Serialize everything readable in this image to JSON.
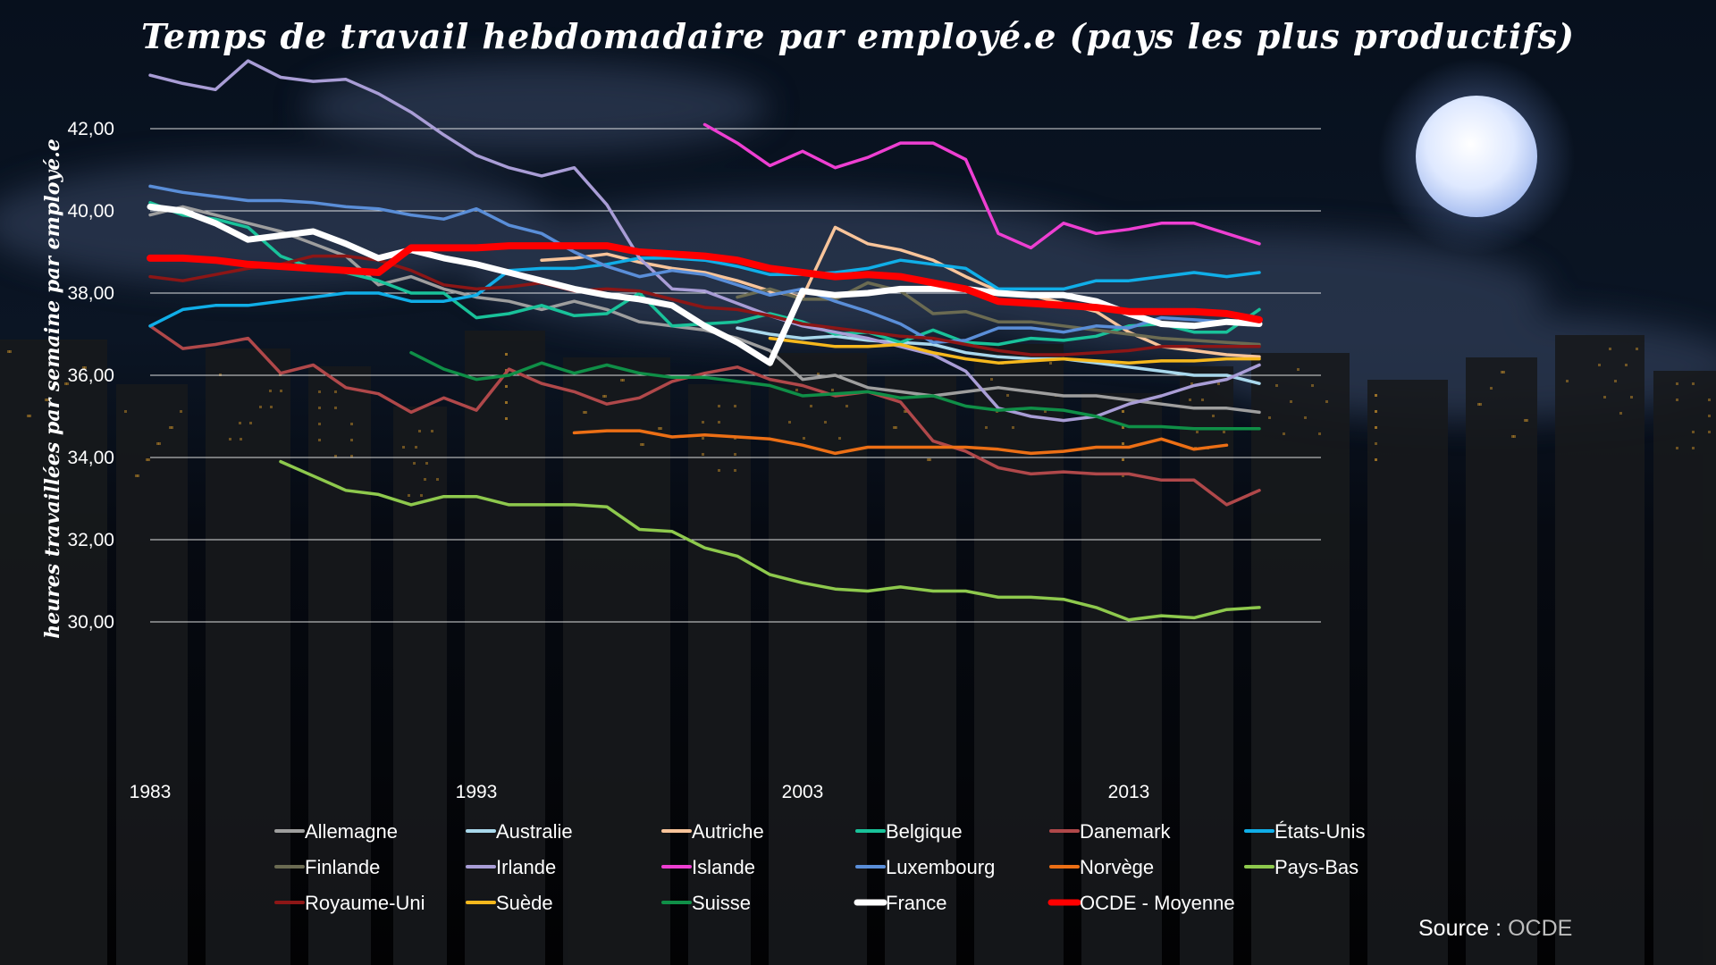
{
  "title": "Temps de travail hebdomadaire par employé.e (pays les plus productifs)",
  "source": {
    "label": "Source :",
    "value": "OCDE"
  },
  "colors": {
    "background": "#000000",
    "grid": "#ffffff",
    "moon": "#dfe9ff"
  },
  "chart_data": {
    "type": "line",
    "title": "Temps de travail hebdomadaire par employé.e (pays les plus productifs)",
    "xlabel": "",
    "ylabel": "heures travaillées par semaine par employé.e",
    "xlim": [
      1983,
      2017
    ],
    "ylim": [
      30,
      44
    ],
    "x_ticks": [
      1983,
      1993,
      2003,
      2013
    ],
    "y_ticks": [
      "30,00",
      "32,00",
      "34,00",
      "36,00",
      "38,00",
      "40,00",
      "42,00"
    ],
    "y_tick_values": [
      30,
      32,
      34,
      36,
      38,
      40,
      42
    ],
    "grid": "horizontal",
    "legend_position": "bottom",
    "series": [
      {
        "name": "Allemagne",
        "color": "#9e9e9e",
        "start": 1983,
        "values": [
          39.9,
          40.1,
          39.9,
          39.7,
          39.5,
          39.2,
          38.9,
          38.2,
          38.4,
          38.1,
          37.9,
          37.8,
          37.6,
          37.8,
          37.6,
          37.3,
          37.2,
          37.1,
          36.9,
          36.6,
          35.9,
          36.0,
          35.7,
          35.6,
          35.5,
          35.6,
          35.7,
          35.6,
          35.5,
          35.5,
          35.4,
          35.3,
          35.2,
          35.2,
          35.1
        ]
      },
      {
        "name": "Australie",
        "color": "#a9d8ec",
        "start": 2001,
        "values": [
          37.15,
          37.0,
          36.9,
          36.95,
          36.85,
          36.8,
          36.75,
          36.55,
          36.45,
          36.4,
          36.4,
          36.3,
          36.2,
          36.1,
          36.0,
          36.0,
          35.8
        ]
      },
      {
        "name": "Autriche",
        "color": "#f8c49a",
        "start": 1995,
        "values": [
          38.8,
          38.85,
          38.95,
          38.75,
          38.6,
          38.5,
          38.3,
          38.05,
          37.9,
          39.6,
          39.2,
          39.05,
          38.8,
          38.4,
          38.05,
          37.95,
          37.75,
          37.55,
          37.05,
          36.7,
          36.6,
          36.5,
          36.45
        ]
      },
      {
        "name": "Belgique",
        "color": "#19c29a",
        "start": 1983,
        "values": [
          40.2,
          39.9,
          39.8,
          39.6,
          38.9,
          38.6,
          38.5,
          38.3,
          38.0,
          38.0,
          37.4,
          37.5,
          37.7,
          37.45,
          37.5,
          38.0,
          37.2,
          37.25,
          37.3,
          37.5,
          37.3,
          37.0,
          37.05,
          36.8,
          37.1,
          36.8,
          36.75,
          36.9,
          36.85,
          36.95,
          37.2,
          37.25,
          37.05,
          37.05,
          37.6
        ]
      },
      {
        "name": "Danemark",
        "color": "#b0484a",
        "start": 1983,
        "values": [
          37.2,
          36.65,
          36.75,
          36.9,
          36.05,
          36.25,
          35.7,
          35.55,
          35.1,
          35.45,
          35.15,
          36.15,
          35.8,
          35.6,
          35.3,
          35.45,
          35.85,
          36.05,
          36.2,
          35.9,
          35.75,
          35.5,
          35.6,
          35.35,
          34.4,
          34.15,
          33.75,
          33.6,
          33.65,
          33.6,
          33.6,
          33.45,
          33.45,
          32.85,
          33.2
        ]
      },
      {
        "name": "États-Unis",
        "color": "#10aee8",
        "start": 1983,
        "values": [
          37.2,
          37.6,
          37.7,
          37.7,
          37.8,
          37.9,
          38.0,
          38.0,
          37.8,
          37.8,
          37.95,
          38.55,
          38.6,
          38.6,
          38.7,
          38.85,
          38.85,
          38.8,
          38.65,
          38.45,
          38.45,
          38.5,
          38.6,
          38.8,
          38.7,
          38.6,
          38.1,
          38.1,
          38.1,
          38.3,
          38.3,
          38.4,
          38.5,
          38.4,
          38.5
        ]
      },
      {
        "name": "Finlande",
        "color": "#6b6b52",
        "start": 2001,
        "values": [
          37.9,
          38.1,
          37.85,
          37.85,
          38.25,
          38.05,
          37.5,
          37.55,
          37.3,
          37.3,
          37.2,
          37.1,
          37.0,
          36.9,
          36.85,
          36.8,
          36.75
        ]
      },
      {
        "name": "Irlande",
        "color": "#a99dd6",
        "start": 1983,
        "values": [
          43.3,
          43.1,
          42.95,
          43.65,
          43.25,
          43.15,
          43.2,
          42.85,
          42.4,
          41.85,
          41.35,
          41.05,
          40.85,
          41.05,
          40.15,
          38.85,
          38.1,
          38.05,
          37.75,
          37.45,
          37.2,
          37.05,
          36.9,
          36.7,
          36.5,
          36.1,
          35.2,
          35.0,
          34.9,
          35.0,
          35.3,
          35.5,
          35.75,
          35.9,
          36.25
        ]
      },
      {
        "name": "Islande",
        "color": "#ee3fd2",
        "start": 2000,
        "values": [
          42.1,
          41.65,
          41.1,
          41.45,
          41.05,
          41.3,
          41.65,
          41.65,
          41.25,
          39.45,
          39.1,
          39.7,
          39.45,
          39.55,
          39.7,
          39.7,
          39.45,
          39.2
        ]
      },
      {
        "name": "Luxembourg",
        "color": "#5a8ed8",
        "start": 1983,
        "values": [
          40.6,
          40.45,
          40.35,
          40.25,
          40.25,
          40.2,
          40.1,
          40.05,
          39.9,
          39.8,
          40.05,
          39.65,
          39.45,
          39.0,
          38.65,
          38.4,
          38.55,
          38.45,
          38.2,
          37.95,
          38.1,
          37.8,
          37.55,
          37.25,
          36.8,
          36.85,
          37.15,
          37.15,
          37.05,
          37.2,
          37.15,
          37.4,
          37.35,
          37.3,
          37.35
        ]
      },
      {
        "name": "Norvège",
        "color": "#ec6f15",
        "start": 1996,
        "values": [
          34.6,
          34.65,
          34.65,
          34.5,
          34.55,
          34.5,
          34.45,
          34.3,
          34.1,
          34.25,
          34.25,
          34.25,
          34.25,
          34.2,
          34.1,
          34.15,
          34.25,
          34.25,
          34.45,
          34.2,
          34.3
        ]
      },
      {
        "name": "Pays-Bas",
        "color": "#8ec94d",
        "start": 1987,
        "values": [
          33.9,
          33.55,
          33.2,
          33.1,
          32.85,
          33.05,
          33.05,
          32.85,
          32.85,
          32.85,
          32.8,
          32.25,
          32.2,
          31.8,
          31.6,
          31.15,
          30.95,
          30.8,
          30.75,
          30.85,
          30.75,
          30.75,
          30.6,
          30.6,
          30.55,
          30.35,
          30.05,
          30.15,
          30.1,
          30.3,
          30.35
        ]
      },
      {
        "name": "Royaume-Uni",
        "color": "#8c1616",
        "start": 1983,
        "values": [
          38.4,
          38.3,
          38.45,
          38.6,
          38.7,
          38.9,
          38.9,
          38.8,
          38.55,
          38.2,
          38.1,
          38.15,
          38.25,
          38.05,
          38.1,
          38.05,
          37.85,
          37.65,
          37.6,
          37.45,
          37.25,
          37.15,
          37.05,
          36.95,
          36.9,
          36.75,
          36.6,
          36.5,
          36.5,
          36.55,
          36.6,
          36.7,
          36.7,
          36.7,
          36.7
        ]
      },
      {
        "name": "Suède",
        "color": "#f6b81d",
        "start": 2002,
        "values": [
          36.9,
          36.8,
          36.7,
          36.7,
          36.75,
          36.55,
          36.4,
          36.3,
          36.35,
          36.4,
          36.35,
          36.3,
          36.35,
          36.35,
          36.4,
          36.4
        ]
      },
      {
        "name": "Suisse",
        "color": "#0f8f47",
        "start": 1991,
        "values": [
          36.55,
          36.15,
          35.9,
          36.0,
          36.3,
          36.05,
          36.25,
          36.05,
          35.95,
          35.95,
          35.85,
          35.75,
          35.5,
          35.55,
          35.6,
          35.45,
          35.5,
          35.25,
          35.15,
          35.2,
          35.15,
          35.0,
          34.75,
          34.75,
          34.7,
          34.7,
          34.7
        ]
      },
      {
        "name": "France",
        "color": "#ffffff",
        "start": 1983,
        "values": [
          40.1,
          40.0,
          39.7,
          39.3,
          39.4,
          39.5,
          39.2,
          38.85,
          39.05,
          38.85,
          38.7,
          38.5,
          38.3,
          38.1,
          37.95,
          37.85,
          37.7,
          37.2,
          36.8,
          36.3,
          38.05,
          37.95,
          38.0,
          38.1,
          38.1,
          38.1,
          38.0,
          37.95,
          37.95,
          37.8,
          37.5,
          37.25,
          37.2,
          37.3,
          37.25
        ]
      },
      {
        "name": "OCDE - Moyenne",
        "color": "#ff0000",
        "start": 1983,
        "values": [
          38.85,
          38.85,
          38.8,
          38.7,
          38.65,
          38.6,
          38.55,
          38.5,
          39.1,
          39.1,
          39.1,
          39.15,
          39.15,
          39.15,
          39.15,
          39.0,
          38.95,
          38.9,
          38.8,
          38.6,
          38.5,
          38.4,
          38.45,
          38.4,
          38.25,
          38.1,
          37.8,
          37.75,
          37.7,
          37.65,
          37.55,
          37.55,
          37.55,
          37.5,
          37.35
        ]
      }
    ]
  }
}
